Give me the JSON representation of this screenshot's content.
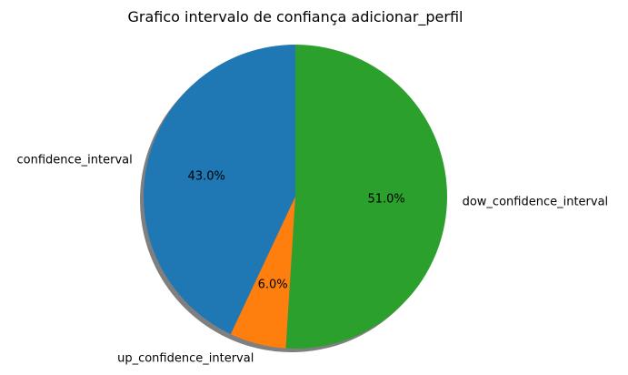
{
  "chart_data": {
    "type": "pie",
    "title": "Grafico intervalo de confiança adicionar_perfil",
    "slices": [
      {
        "label": "confidence_interval",
        "value": 43.0,
        "pct_label": "43.0%",
        "color": "#1f77b4"
      },
      {
        "label": "up_confidence_interval",
        "value": 6.0,
        "pct_label": "6.0%",
        "color": "#ff7f0e"
      },
      {
        "label": "dow_confidence_interval",
        "value": 51.0,
        "pct_label": "51.0%",
        "color": "#2ca02c"
      }
    ],
    "start_angle_deg": 90,
    "direction": "counterclockwise",
    "shadow": true,
    "legend": "none"
  }
}
